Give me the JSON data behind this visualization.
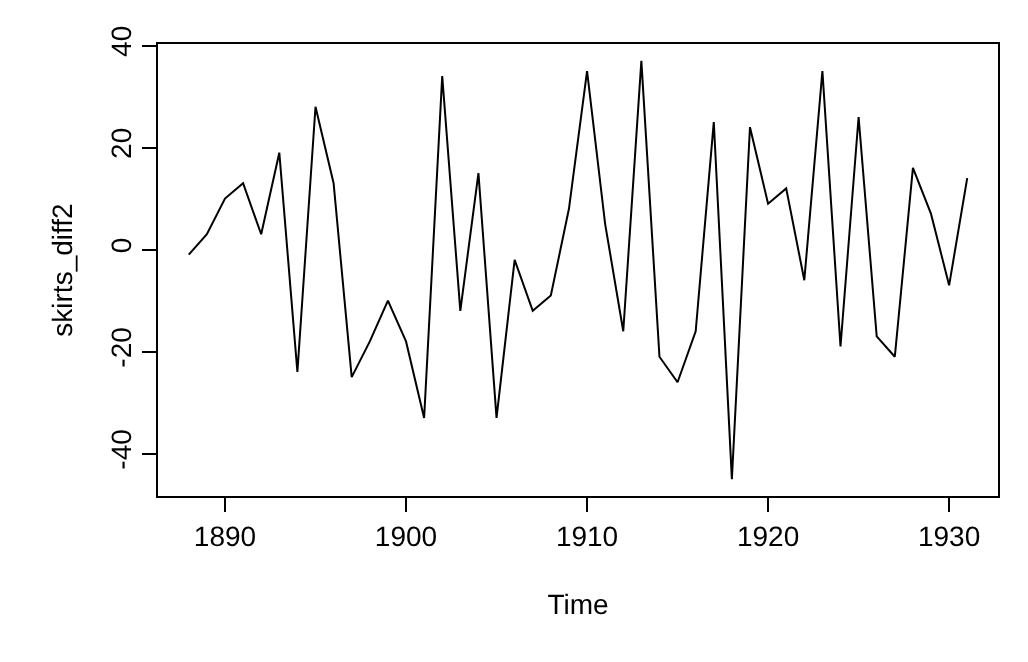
{
  "chart_data": {
    "type": "line",
    "xlabel": "Time",
    "ylabel": "skirts_diff2",
    "x": [
      1888,
      1889,
      1890,
      1891,
      1892,
      1893,
      1894,
      1895,
      1896,
      1897,
      1898,
      1899,
      1900,
      1901,
      1902,
      1903,
      1904,
      1905,
      1906,
      1907,
      1908,
      1909,
      1910,
      1911,
      1912,
      1913,
      1914,
      1915,
      1916,
      1917,
      1918,
      1919,
      1920,
      1921,
      1922,
      1923,
      1924,
      1925,
      1926,
      1927,
      1928,
      1929,
      1930,
      1931
    ],
    "series": [
      {
        "color": "#000000",
        "values": [
          -1,
          3,
          10,
          13,
          3,
          19,
          -24,
          28,
          13,
          -25,
          -18,
          -10,
          -18,
          -33,
          34,
          -12,
          15,
          -33,
          -2,
          -12,
          -9,
          8,
          35,
          5,
          -16,
          37,
          -21,
          -26,
          -16,
          25,
          -45,
          24,
          9,
          12,
          -6,
          35,
          -19,
          26,
          -17,
          -21,
          16,
          7,
          -7,
          14
        ]
      }
    ],
    "xlim": [
      1886.3,
      1932.7
    ],
    "ylim": [
      -48.3,
      40.3
    ],
    "xticks": [
      1890,
      1900,
      1910,
      1920,
      1930
    ],
    "yticks": [
      -40,
      -20,
      0,
      20,
      40
    ],
    "grid": false,
    "legend": false,
    "marker": "none",
    "line_style": "solid"
  }
}
